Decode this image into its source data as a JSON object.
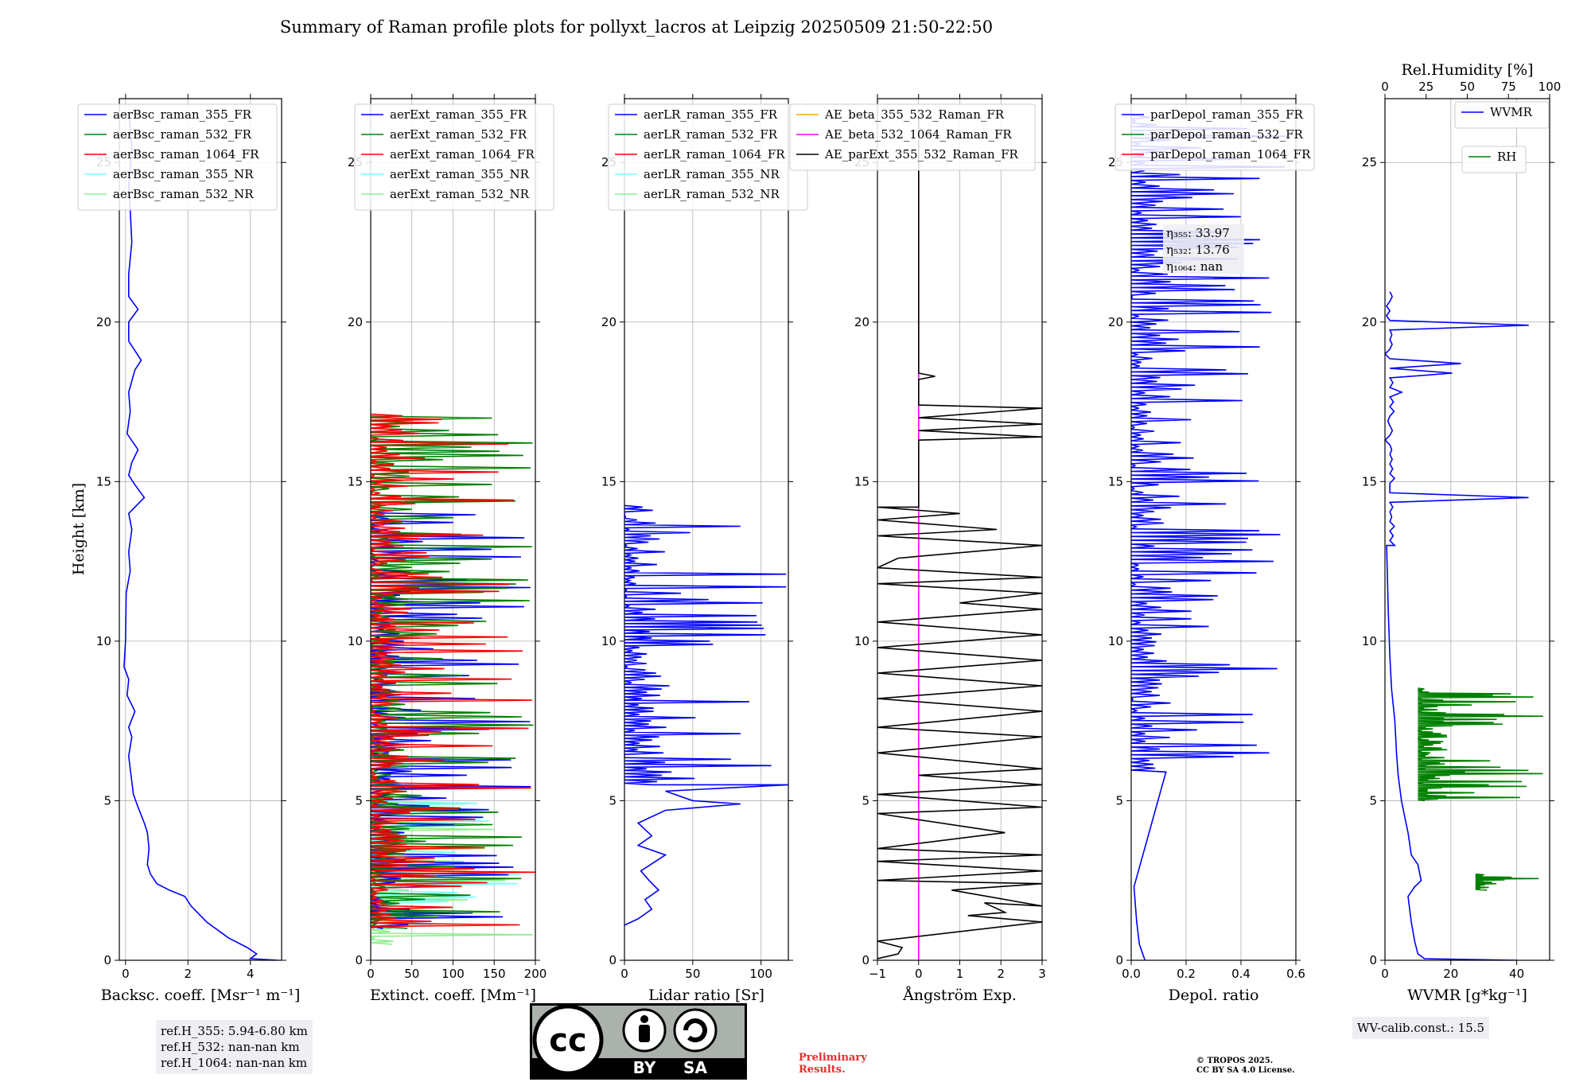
{
  "title": "Summary of Raman profile plots for pollyxt_lacros at Leipzig 20250509 21:50-22:50",
  "ylabel": "Height [km]",
  "ref_info": [
    "ref.H_355: 5.94-6.80 km",
    "ref.H_532: nan-nan km",
    "ref.H_1064: nan-nan km"
  ],
  "wv_calib": "WV-calib.const.: 15.5",
  "preliminary": [
    "Preliminary",
    "Results."
  ],
  "copyright": [
    "© TROPOS 2025.",
    "CC BY SA 4.0 License."
  ],
  "license_badge": {
    "cc": "cc",
    "by": "BY",
    "sa": "SA"
  },
  "colors": {
    "b": "#0000ff",
    "g": "#008000",
    "r": "#ff0000",
    "c": "#7fffff",
    "lg": "#90ee90",
    "orange": "#ffa500",
    "magenta": "#ff00ff",
    "black": "#000000"
  },
  "chart_data": [
    {
      "type": "line",
      "id": "bsc",
      "xlabel": "Backsc. coeff. [Msr$^{-1}$ m$^{-1}$]",
      "xlabel_text": "Backsc. coeff. [Msr⁻¹ m⁻¹]",
      "xlim": [
        -0.2,
        5
      ],
      "xticks": [
        0,
        2,
        4
      ],
      "ylim": [
        0,
        27
      ],
      "yticks": [
        0,
        5,
        10,
        15,
        20,
        25
      ],
      "legend": [
        {
          "name": "aerBsc_raman_355_FR",
          "color": "b"
        },
        {
          "name": "aerBsc_raman_532_FR",
          "color": "g"
        },
        {
          "name": "aerBsc_raman_1064_FR",
          "color": "r"
        },
        {
          "name": "aerBsc_raman_355_NR",
          "color": "c"
        },
        {
          "name": "aerBsc_raman_532_NR",
          "color": "lg"
        }
      ],
      "series": [
        {
          "name": "aerBsc_raman_355_FR",
          "color": "b",
          "points": [
            [
              4.9,
              0
            ],
            [
              4.0,
              0.05
            ],
            [
              4.2,
              0.2
            ],
            [
              3.9,
              0.4
            ],
            [
              3.3,
              0.7
            ],
            [
              2.6,
              1.2
            ],
            [
              2.1,
              1.7
            ],
            [
              1.9,
              2.0
            ],
            [
              1.4,
              2.2
            ],
            [
              1.0,
              2.4
            ],
            [
              0.8,
              2.7
            ],
            [
              0.7,
              3.0
            ],
            [
              0.75,
              3.5
            ],
            [
              0.7,
              4.0
            ],
            [
              0.6,
              4.3
            ],
            [
              0.4,
              4.8
            ],
            [
              0.25,
              5.2
            ],
            [
              0.2,
              5.6
            ],
            [
              0.15,
              6.0
            ],
            [
              0.1,
              6.4
            ],
            [
              0.2,
              7.0
            ],
            [
              0.1,
              7.3
            ],
            [
              0.3,
              7.8
            ],
            [
              0.05,
              8.3
            ],
            [
              0.1,
              8.8
            ],
            [
              -0.05,
              9.2
            ],
            [
              0.0,
              10
            ],
            [
              0.02,
              11.5
            ],
            [
              0.15,
              12.2
            ],
            [
              0.1,
              12.8
            ],
            [
              0.2,
              13.5
            ],
            [
              0.1,
              14.0
            ],
            [
              0.6,
              14.5
            ],
            [
              0.3,
              14.9
            ],
            [
              0.1,
              15.2
            ],
            [
              0.2,
              15.6
            ],
            [
              0.4,
              16.0
            ],
            [
              0.05,
              16.5
            ],
            [
              0.15,
              17.2
            ],
            [
              0.1,
              17.8
            ],
            [
              0.3,
              18.5
            ],
            [
              0.5,
              18.8
            ],
            [
              0.1,
              19.4
            ],
            [
              0.1,
              20
            ],
            [
              0.4,
              20.4
            ],
            [
              0.1,
              20.8
            ],
            [
              0.1,
              21.5
            ],
            [
              0.2,
              22.5
            ],
            [
              0.15,
              23.5
            ],
            [
              0.1,
              24.2
            ],
            [
              0.2,
              25.5
            ],
            [
              0.1,
              26.6
            ]
          ]
        }
      ]
    },
    {
      "type": "line",
      "id": "ext",
      "xlabel_text": "Extinct. coeff. [Mm⁻¹]",
      "xlim": [
        0,
        200
      ],
      "xticks": [
        0,
        50,
        100,
        150,
        200
      ],
      "ylim": [
        0,
        27
      ],
      "yticks": [
        0,
        5,
        10,
        15,
        20,
        25
      ],
      "legend": [
        {
          "name": "aerExt_raman_355_FR",
          "color": "b"
        },
        {
          "name": "aerExt_raman_532_FR",
          "color": "g"
        },
        {
          "name": "aerExt_raman_1064_FR",
          "color": "r"
        },
        {
          "name": "aerExt_raman_355_NR",
          "color": "c"
        },
        {
          "name": "aerExt_raman_532_NR",
          "color": "lg"
        }
      ],
      "series": [
        {
          "name": "aerExt_raman_532_NR",
          "color": "lg",
          "spiky": true,
          "ymin": 0.5,
          "ymax": 5.0,
          "step": 0.1,
          "max": 200,
          "seed": 5
        },
        {
          "name": "aerExt_raman_355_NR",
          "color": "c",
          "spiky": true,
          "ymin": 1.0,
          "ymax": 5.0,
          "step": 0.14,
          "max": 190,
          "seed": 7
        },
        {
          "name": "aerExt_raman_355_FR",
          "color": "b",
          "spiky": true,
          "ymin": 1.0,
          "ymax": 14.0,
          "step": 0.12,
          "max": 200,
          "seed": 11
        },
        {
          "name": "aerExt_raman_532_FR",
          "color": "g",
          "spiky": true,
          "ymin": 1.0,
          "ymax": 17.0,
          "step": 0.13,
          "max": 200,
          "seed": 13
        },
        {
          "name": "aerExt_raman_1064_FR",
          "color": "r",
          "spiky": true,
          "ymin": 1.0,
          "ymax": 17.1,
          "step": 0.11,
          "max": 200,
          "seed": 17
        }
      ]
    },
    {
      "type": "line",
      "id": "lr",
      "xlabel_text": "Lidar ratio [Sr]",
      "xlim": [
        0,
        120
      ],
      "xticks": [
        0,
        50,
        100
      ],
      "ylim": [
        0,
        27
      ],
      "yticks": [
        0,
        5,
        10,
        15,
        20,
        25
      ],
      "legend": [
        {
          "name": "aerLR_raman_355_FR",
          "color": "b"
        },
        {
          "name": "aerLR_raman_532_FR",
          "color": "g"
        },
        {
          "name": "aerLR_raman_1064_FR",
          "color": "r"
        },
        {
          "name": "aerLR_raman_355_NR",
          "color": "c"
        },
        {
          "name": "aerLR_raman_532_NR",
          "color": "lg"
        }
      ],
      "series": [
        {
          "name": "aerLR_raman_355_FR",
          "color": "b",
          "points": [
            [
              0,
              1.1
            ],
            [
              10,
              1.3
            ],
            [
              20,
              1.6
            ],
            [
              15,
              1.9
            ],
            [
              25,
              2.2
            ],
            [
              18,
              2.5
            ],
            [
              12,
              2.8
            ],
            [
              30,
              3.3
            ],
            [
              10,
              3.6
            ],
            [
              20,
              3.9
            ],
            [
              10,
              4.3
            ],
            [
              30,
              4.7
            ],
            [
              85,
              4.9
            ],
            [
              50,
              5.0
            ],
            [
              30,
              5.3
            ],
            [
              120,
              5.5
            ]
          ],
          "spiky": true,
          "ymin": 5.5,
          "ymax": 14.2,
          "step": 0.1,
          "max": 120,
          "seed": 19
        }
      ]
    },
    {
      "type": "line",
      "id": "ae",
      "xlabel_text": "Ångström Exp.",
      "xlim": [
        -1,
        3
      ],
      "xticks": [
        -1,
        0,
        1,
        2,
        3
      ],
      "ylim": [
        0,
        27
      ],
      "yticks": [
        0,
        5,
        10,
        15,
        20,
        25
      ],
      "legend": [
        {
          "name": "AE_beta_355_532_Raman_FR",
          "color": "orange"
        },
        {
          "name": "AE_beta_532_1064_Raman_FR",
          "color": "magenta"
        },
        {
          "name": "AE_parExt_355_532_Raman_FR",
          "color": "black"
        }
      ],
      "series": [
        {
          "name": "AE_beta_532_1064_Raman_FR",
          "color": "magenta",
          "points": [
            [
              0,
              0
            ],
            [
              0,
              26.5
            ]
          ]
        },
        {
          "name": "AE_parExt_355_532_Raman_FR",
          "color": "black",
          "points": [
            [
              -1,
              0.05
            ],
            [
              -0.5,
              0.2
            ],
            [
              -0.4,
              0.4
            ],
            [
              -1,
              0.6
            ],
            [
              3,
              1.2
            ],
            [
              1.2,
              1.4
            ],
            [
              2.1,
              1.5
            ],
            [
              1.6,
              1.8
            ],
            [
              3,
              1.7
            ],
            [
              0.8,
              2.2
            ],
            [
              3,
              2.4
            ],
            [
              -1,
              2.5
            ],
            [
              3,
              2.8
            ],
            [
              -1,
              3.1
            ],
            [
              3,
              3.3
            ],
            [
              -1,
              3.5
            ],
            [
              2.1,
              4.0
            ],
            [
              -1,
              4.6
            ],
            [
              3,
              4.8
            ],
            [
              -1,
              5.2
            ],
            [
              3,
              5.5
            ],
            [
              0,
              5.8
            ],
            [
              3,
              6.0
            ],
            [
              -1,
              6.5
            ],
            [
              3,
              7.0
            ],
            [
              -1,
              7.3
            ],
            [
              3,
              7.8
            ],
            [
              -1,
              8.2
            ],
            [
              3,
              8.6
            ],
            [
              -1,
              9.0
            ],
            [
              3,
              9.4
            ],
            [
              -1,
              9.8
            ],
            [
              3,
              10.2
            ],
            [
              -1,
              10.6
            ],
            [
              3,
              11.0
            ],
            [
              1,
              11.2
            ],
            [
              3,
              11.5
            ],
            [
              -1,
              11.8
            ],
            [
              3,
              12.0
            ],
            [
              -1,
              12.3
            ],
            [
              -0.5,
              12.6
            ],
            [
              3,
              13.0
            ],
            [
              -1,
              13.3
            ],
            [
              1.9,
              13.5
            ],
            [
              -1,
              13.8
            ],
            [
              1,
              14.0
            ],
            [
              -1,
              14.2
            ],
            [
              0,
              14.2
            ],
            [
              0,
              16.3
            ],
            [
              3,
              16.4
            ],
            [
              0,
              16.6
            ],
            [
              3,
              16.8
            ],
            [
              0,
              17.0
            ],
            [
              3,
              17.3
            ],
            [
              0,
              17.4
            ],
            [
              0,
              18.2
            ],
            [
              0.4,
              18.3
            ],
            [
              0,
              18.4
            ],
            [
              0,
              26.5
            ]
          ]
        }
      ]
    },
    {
      "type": "line",
      "id": "dep",
      "xlabel_text": "Depol. ratio",
      "xlim": [
        0,
        0.6
      ],
      "xticks": [
        0.0,
        0.2,
        0.4,
        0.6
      ],
      "ylim": [
        0,
        27
      ],
      "yticks": [
        0,
        5,
        10,
        15,
        20,
        25
      ],
      "legend": [
        {
          "name": "parDepol_raman_355_FR",
          "color": "b"
        },
        {
          "name": "parDepol_raman_532_FR",
          "color": "g"
        },
        {
          "name": "parDepol_raman_1064_FR",
          "color": "r"
        }
      ],
      "annotation": [
        "η₃₅₅: 33.97",
        "η₅₃₂: 13.76",
        "η₁₀₆₄: nan"
      ],
      "series": [
        {
          "name": "parDepol_raman_355_FR",
          "color": "b",
          "points": [
            [
              0.05,
              0
            ],
            [
              0.03,
              0.5
            ],
            [
              0.02,
              1.2
            ],
            [
              0.01,
              2.3
            ]
          ],
          "spiky": true,
          "ymin": 5.9,
          "ymax": 26.5,
          "step": 0.12,
          "max": 0.6,
          "seed": 23
        }
      ]
    },
    {
      "type": "line",
      "id": "wv",
      "xlabel_text": "WVMR [g*kg⁻¹]",
      "xlim": [
        0,
        50
      ],
      "xticks": [
        0,
        20,
        40
      ],
      "ylim": [
        0,
        27
      ],
      "yticks": [
        0,
        5,
        10,
        15,
        20,
        25
      ],
      "top_axis": {
        "label": "Rel.Humidity [%]",
        "xlim": [
          0,
          100
        ],
        "xticks": [
          0,
          25,
          50,
          75,
          100
        ]
      },
      "legend": [
        {
          "name": "WVMR",
          "color": "b"
        }
      ],
      "legend2": [
        {
          "name": "RH",
          "color": "g"
        }
      ],
      "series": [
        {
          "name": "RH",
          "color": "g",
          "spiky": true,
          "ymin": 2.2,
          "ymax": 2.7,
          "step": 0.04,
          "min": 55,
          "max": 100,
          "rh": true,
          "seed": 29
        },
        {
          "name": "RH",
          "color": "g",
          "spiky": true,
          "ymin": 5.0,
          "ymax": 8.5,
          "step": 0.05,
          "min": 20,
          "max": 100,
          "rh": true,
          "seed": 31
        },
        {
          "name": "WVMR",
          "color": "b",
          "points": [
            [
              40,
              0
            ],
            [
              12,
              0.05
            ],
            [
              10,
              0.2
            ],
            [
              9,
              0.6
            ],
            [
              8,
              1.2
            ],
            [
              7,
              2.0
            ],
            [
              9,
              2.3
            ],
            [
              11,
              2.5
            ],
            [
              10,
              3.0
            ],
            [
              8,
              3.3
            ],
            [
              7,
              4.0
            ],
            [
              6,
              4.5
            ],
            [
              5,
              5.0
            ],
            [
              4,
              5.8
            ],
            [
              3.5,
              6.5
            ],
            [
              3,
              7.5
            ],
            [
              2,
              8.5
            ],
            [
              1.5,
              9.5
            ],
            [
              1,
              11
            ],
            [
              0.5,
              13
            ]
          ],
          "spiky2": true,
          "ymin": 13,
          "ymax": 21,
          "step": 0.3,
          "max": 50,
          "seed": 37
        }
      ]
    }
  ]
}
